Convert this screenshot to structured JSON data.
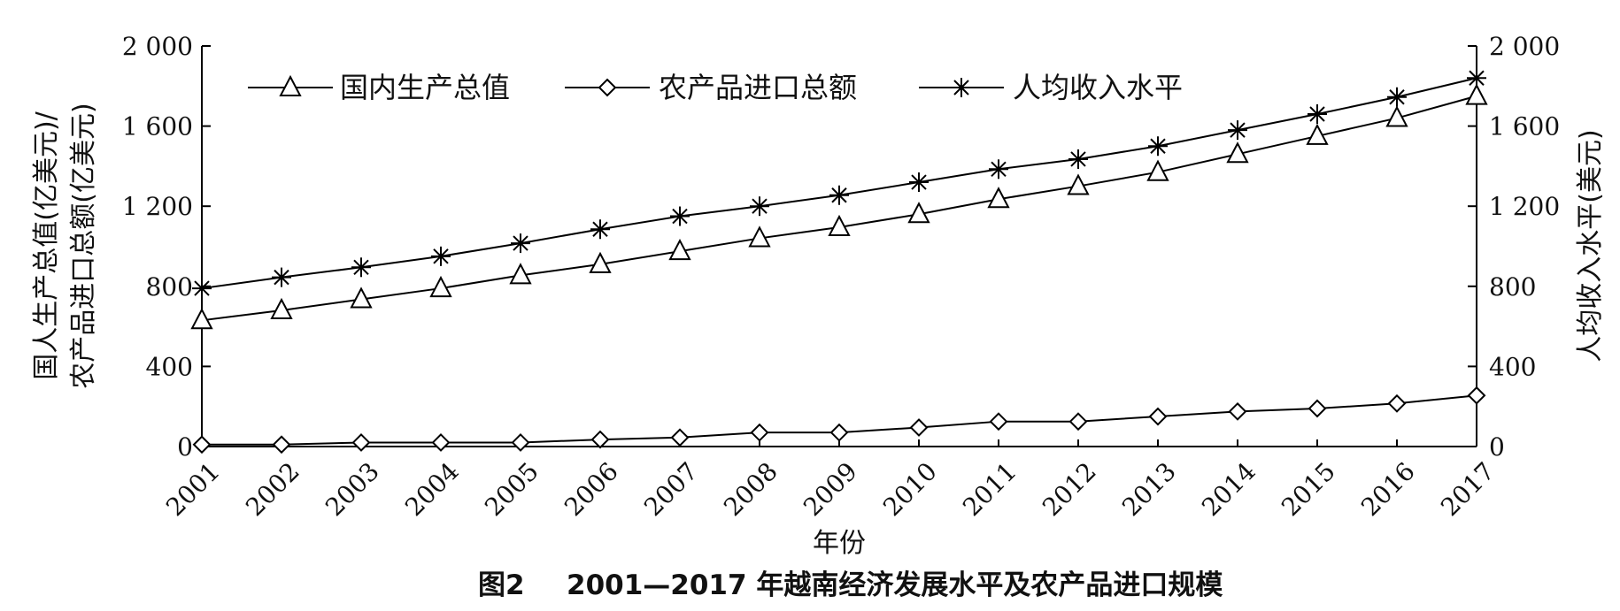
{
  "chart_data": {
    "type": "line",
    "caption_fig": "图2",
    "caption_text": "2001—2017 年越南经济发展水平及农产品进口规模",
    "xlabel": "年份",
    "ylabel_left_line1": "国人生产总值(亿美元)/",
    "ylabel_left_line2": "农产品进口总额(亿美元)",
    "ylabel_right": "人均收入水平(美元)",
    "x": [
      "2001",
      "2002",
      "2003",
      "2004",
      "2005",
      "2006",
      "2007",
      "2008",
      "2009",
      "2010",
      "2011",
      "2012",
      "2013",
      "2014",
      "2015",
      "2016",
      "2017"
    ],
    "ylim_left": [
      0,
      2000
    ],
    "ylim_right": [
      0,
      2000
    ],
    "yticks_left": [
      "0",
      "400",
      "800",
      "1 200",
      "1 600",
      "2 000"
    ],
    "yticks_right": [
      "0",
      "400",
      "800",
      "1 200",
      "1 600",
      "2 000"
    ],
    "ytick_values": [
      0,
      400,
      800,
      1200,
      1600,
      2000
    ],
    "legend_position": "top-left",
    "grid": false,
    "series": [
      {
        "name": "国内生产总值",
        "marker": "triangle",
        "axis": "left",
        "values": [
          630,
          680,
          735,
          790,
          855,
          910,
          975,
          1040,
          1095,
          1160,
          1235,
          1300,
          1370,
          1460,
          1550,
          1640,
          1750
        ]
      },
      {
        "name": "农产品进口总额",
        "marker": "diamond",
        "axis": "left",
        "values": [
          10,
          10,
          20,
          20,
          20,
          35,
          45,
          70,
          70,
          95,
          125,
          125,
          150,
          175,
          190,
          215,
          255
        ]
      },
      {
        "name": "人均收入水平",
        "marker": "asterisk",
        "axis": "right",
        "values": [
          790,
          845,
          895,
          950,
          1015,
          1085,
          1150,
          1200,
          1255,
          1320,
          1385,
          1435,
          1500,
          1580,
          1660,
          1745,
          1840
        ]
      }
    ]
  }
}
